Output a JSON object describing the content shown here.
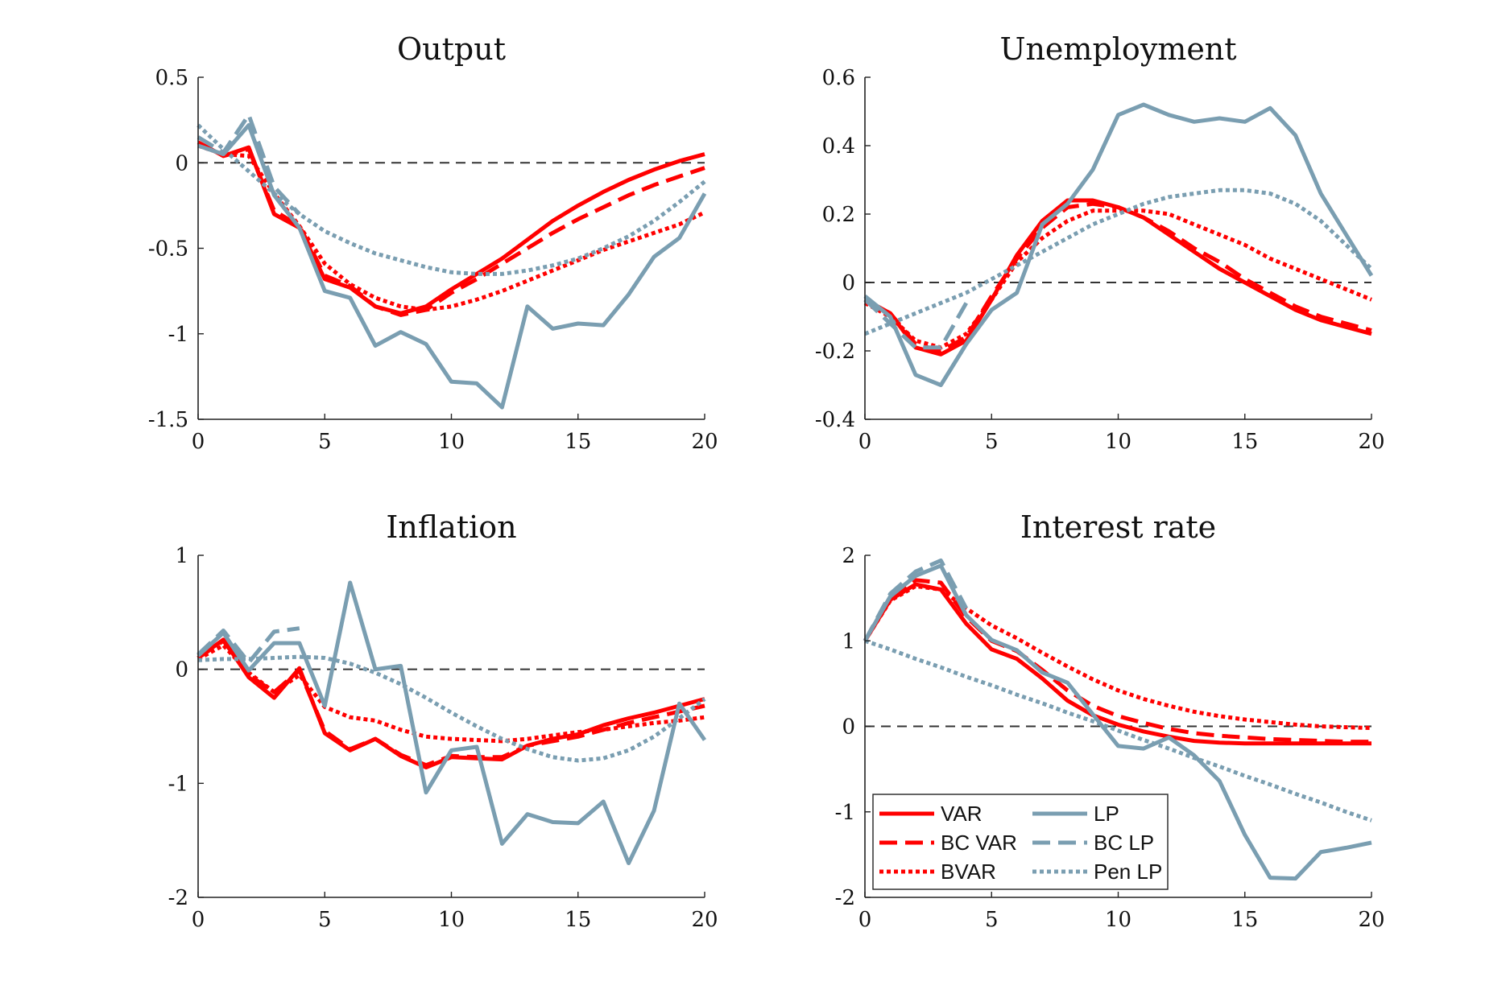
{
  "colors": {
    "var": "#ff0000",
    "lp": "#7a9eb1",
    "zero_line": "#333333",
    "axis": "#222222"
  },
  "legend": {
    "placement": "inside-lower-left of Interest rate panel",
    "entries": [
      {
        "label": "VAR",
        "color": "#ff0000",
        "style": "solid"
      },
      {
        "label": "LP",
        "color": "#7a9eb1",
        "style": "solid"
      },
      {
        "label": "BC VAR",
        "color": "#ff0000",
        "style": "dashed"
      },
      {
        "label": "BC LP",
        "color": "#7a9eb1",
        "style": "dashed"
      },
      {
        "label": "BVAR",
        "color": "#ff0000",
        "style": "dotted"
      },
      {
        "label": "Pen LP",
        "color": "#7a9eb1",
        "style": "dotted"
      }
    ]
  },
  "chart_data": [
    {
      "type": "line",
      "title": "Output",
      "xlim": [
        0,
        20
      ],
      "ylim": [
        -1.5,
        0.5
      ],
      "xticks": [
        0,
        5,
        10,
        15,
        20
      ],
      "xtick_labels": [
        "0",
        "5",
        "10",
        "15",
        "20"
      ],
      "yticks": [
        -1.5,
        -1,
        -0.5,
        0,
        0.5
      ],
      "ytick_labels": [
        "-1.5",
        "-1",
        "-0.5",
        "0",
        "0.5"
      ],
      "zero_line": true,
      "x": [
        0,
        1,
        2,
        3,
        4,
        5,
        6,
        7,
        8,
        9,
        10,
        11,
        12,
        13,
        14,
        15,
        16,
        17,
        18,
        19,
        20
      ],
      "series": [
        {
          "name": "VAR",
          "color": "#ff0000",
          "style": "solid",
          "values": [
            0.12,
            0.04,
            0.09,
            -0.3,
            -0.38,
            -0.68,
            -0.73,
            -0.84,
            -0.88,
            -0.84,
            -0.74,
            -0.65,
            -0.56,
            -0.45,
            -0.34,
            -0.25,
            -0.17,
            -0.1,
            -0.04,
            0.01,
            0.05
          ]
        },
        {
          "name": "BC VAR",
          "color": "#ff0000",
          "style": "dashed",
          "values": [
            0.12,
            0.04,
            0.08,
            -0.28,
            -0.37,
            -0.66,
            -0.72,
            -0.84,
            -0.89,
            -0.86,
            -0.76,
            -0.68,
            -0.59,
            -0.5,
            -0.41,
            -0.33,
            -0.26,
            -0.19,
            -0.13,
            -0.08,
            -0.03
          ]
        },
        {
          "name": "BVAR",
          "color": "#ff0000",
          "style": "dotted",
          "values": [
            0.1,
            0.05,
            0.04,
            -0.18,
            -0.37,
            -0.59,
            -0.71,
            -0.79,
            -0.84,
            -0.86,
            -0.84,
            -0.8,
            -0.75,
            -0.69,
            -0.63,
            -0.57,
            -0.51,
            -0.46,
            -0.41,
            -0.36,
            -0.29
          ]
        },
        {
          "name": "LP",
          "color": "#7a9eb1",
          "style": "solid",
          "values": [
            0.1,
            0.05,
            0.22,
            -0.19,
            -0.38,
            -0.75,
            -0.79,
            -1.07,
            -0.99,
            -1.06,
            -1.28,
            -1.29,
            -1.43,
            -0.84,
            -0.97,
            -0.94,
            -0.95,
            -0.77,
            -0.55,
            -0.44,
            -0.18
          ]
        },
        {
          "name": "BC LP",
          "color": "#7a9eb1",
          "style": "dashed",
          "values": [
            0.15,
            0.06,
            0.28,
            -0.14,
            -0.3,
            null,
            null,
            null,
            null,
            null,
            null,
            null,
            null,
            null,
            null,
            null,
            null,
            null,
            null,
            null,
            null
          ]
        },
        {
          "name": "Pen LP",
          "color": "#7a9eb1",
          "style": "dotted",
          "values": [
            0.22,
            0.08,
            -0.05,
            -0.18,
            -0.3,
            -0.4,
            -0.47,
            -0.53,
            -0.57,
            -0.61,
            -0.64,
            -0.65,
            -0.65,
            -0.63,
            -0.6,
            -0.56,
            -0.5,
            -0.43,
            -0.34,
            -0.23,
            -0.11
          ]
        }
      ]
    },
    {
      "type": "line",
      "title": "Unemployment",
      "xlim": [
        0,
        20
      ],
      "ylim": [
        -0.4,
        0.6
      ],
      "xticks": [
        0,
        5,
        10,
        15,
        20
      ],
      "xtick_labels": [
        "0",
        "5",
        "10",
        "15",
        "20"
      ],
      "yticks": [
        -0.4,
        -0.2,
        0,
        0.2,
        0.4,
        0.6
      ],
      "ytick_labels": [
        "-0.4",
        "-0.2",
        "0",
        "0.2",
        "0.4",
        "0.6"
      ],
      "zero_line": true,
      "x": [
        0,
        1,
        2,
        3,
        4,
        5,
        6,
        7,
        8,
        9,
        10,
        11,
        12,
        13,
        14,
        15,
        16,
        17,
        18,
        19,
        20
      ],
      "series": [
        {
          "name": "VAR",
          "color": "#ff0000",
          "style": "solid",
          "values": [
            -0.05,
            -0.09,
            -0.19,
            -0.21,
            -0.17,
            -0.05,
            0.08,
            0.18,
            0.24,
            0.24,
            0.22,
            0.19,
            0.14,
            0.09,
            0.04,
            0.0,
            -0.04,
            -0.08,
            -0.11,
            -0.13,
            -0.15
          ]
        },
        {
          "name": "BC VAR",
          "color": "#ff0000",
          "style": "dashed",
          "values": [
            -0.05,
            -0.09,
            -0.18,
            -0.2,
            -0.16,
            -0.04,
            0.07,
            0.16,
            0.22,
            0.23,
            0.22,
            0.19,
            0.15,
            0.1,
            0.06,
            0.01,
            -0.03,
            -0.07,
            -0.1,
            -0.12,
            -0.14
          ]
        },
        {
          "name": "BVAR",
          "color": "#ff0000",
          "style": "dotted",
          "values": [
            -0.06,
            -0.1,
            -0.17,
            -0.19,
            -0.15,
            -0.05,
            0.06,
            0.13,
            0.18,
            0.21,
            0.21,
            0.21,
            0.2,
            0.17,
            0.14,
            0.11,
            0.07,
            0.04,
            0.01,
            -0.02,
            -0.05
          ]
        },
        {
          "name": "LP",
          "color": "#7a9eb1",
          "style": "solid",
          "values": [
            -0.04,
            -0.1,
            -0.27,
            -0.3,
            -0.18,
            -0.08,
            -0.03,
            0.17,
            0.23,
            0.33,
            0.49,
            0.52,
            0.49,
            0.47,
            0.48,
            0.47,
            0.51,
            0.43,
            0.26,
            0.14,
            0.02
          ]
        },
        {
          "name": "BC LP",
          "color": "#7a9eb1",
          "style": "dashed",
          "values": [
            -0.05,
            -0.12,
            -0.19,
            -0.19,
            -0.06,
            null,
            null,
            null,
            null,
            null,
            null,
            null,
            null,
            null,
            null,
            null,
            null,
            null,
            null,
            null,
            null
          ]
        },
        {
          "name": "Pen LP",
          "color": "#7a9eb1",
          "style": "dotted",
          "values": [
            -0.15,
            -0.12,
            -0.09,
            -0.06,
            -0.03,
            0.01,
            0.05,
            0.09,
            0.13,
            0.17,
            0.2,
            0.23,
            0.25,
            0.26,
            0.27,
            0.27,
            0.26,
            0.23,
            0.18,
            0.11,
            0.04
          ]
        }
      ]
    },
    {
      "type": "line",
      "title": "Inflation",
      "xlim": [
        0,
        20
      ],
      "ylim": [
        -2,
        1
      ],
      "xticks": [
        0,
        5,
        10,
        15,
        20
      ],
      "xtick_labels": [
        "0",
        "5",
        "10",
        "15",
        "20"
      ],
      "yticks": [
        -2,
        -1,
        0,
        1
      ],
      "ytick_labels": [
        "-2",
        "-1",
        "0",
        "1"
      ],
      "zero_line": true,
      "x": [
        0,
        1,
        2,
        3,
        4,
        5,
        6,
        7,
        8,
        9,
        10,
        11,
        12,
        13,
        14,
        15,
        16,
        17,
        18,
        19,
        20
      ],
      "series": [
        {
          "name": "VAR",
          "color": "#ff0000",
          "style": "solid",
          "values": [
            0.1,
            0.26,
            -0.07,
            -0.25,
            0.01,
            -0.56,
            -0.71,
            -0.61,
            -0.76,
            -0.86,
            -0.77,
            -0.78,
            -0.79,
            -0.67,
            -0.61,
            -0.57,
            -0.49,
            -0.43,
            -0.38,
            -0.32,
            -0.26
          ]
        },
        {
          "name": "BC VAR",
          "color": "#ff0000",
          "style": "dashed",
          "values": [
            0.1,
            0.25,
            -0.05,
            -0.2,
            -0.01,
            -0.54,
            -0.7,
            -0.61,
            -0.75,
            -0.84,
            -0.76,
            -0.77,
            -0.77,
            -0.67,
            -0.63,
            -0.59,
            -0.53,
            -0.47,
            -0.42,
            -0.37,
            -0.32
          ]
        },
        {
          "name": "BVAR",
          "color": "#ff0000",
          "style": "dotted",
          "values": [
            0.09,
            0.21,
            -0.03,
            -0.2,
            -0.05,
            -0.33,
            -0.42,
            -0.45,
            -0.53,
            -0.59,
            -0.61,
            -0.62,
            -0.63,
            -0.61,
            -0.58,
            -0.55,
            -0.53,
            -0.5,
            -0.47,
            -0.45,
            -0.42
          ]
        },
        {
          "name": "LP",
          "color": "#7a9eb1",
          "style": "solid",
          "values": [
            0.12,
            0.32,
            -0.01,
            0.23,
            0.23,
            -0.32,
            0.76,
            0.0,
            0.03,
            -1.08,
            -0.71,
            -0.68,
            -1.53,
            -1.27,
            -1.34,
            -1.35,
            -1.16,
            -1.7,
            -1.24,
            -0.3,
            -0.62
          ]
        },
        {
          "name": "BC LP",
          "color": "#7a9eb1",
          "style": "dashed",
          "values": [
            0.13,
            0.34,
            0.06,
            0.33,
            0.36,
            null,
            null,
            null,
            null,
            null,
            null,
            null,
            null,
            null,
            null,
            null,
            null,
            null,
            null,
            null,
            null
          ]
        },
        {
          "name": "Pen LP",
          "color": "#7a9eb1",
          "style": "dotted",
          "values": [
            0.08,
            0.09,
            0.09,
            0.1,
            0.11,
            0.1,
            0.05,
            -0.03,
            -0.13,
            -0.25,
            -0.38,
            -0.5,
            -0.61,
            -0.7,
            -0.77,
            -0.8,
            -0.78,
            -0.71,
            -0.59,
            -0.43,
            -0.26
          ]
        }
      ]
    },
    {
      "type": "line",
      "title": "Interest rate",
      "xlim": [
        0,
        20
      ],
      "ylim": [
        -2,
        2
      ],
      "xticks": [
        0,
        5,
        10,
        15,
        20
      ],
      "xtick_labels": [
        "0",
        "5",
        "10",
        "15",
        "20"
      ],
      "yticks": [
        -2,
        -1,
        0,
        1,
        2
      ],
      "ytick_labels": [
        "-2",
        "-1",
        "0",
        "1",
        "2"
      ],
      "zero_line": true,
      "x": [
        0,
        1,
        2,
        3,
        4,
        5,
        6,
        7,
        8,
        9,
        10,
        11,
        12,
        13,
        14,
        15,
        16,
        17,
        18,
        19,
        20
      ],
      "series": [
        {
          "name": "VAR",
          "color": "#ff0000",
          "style": "solid",
          "values": [
            1.0,
            1.48,
            1.66,
            1.6,
            1.2,
            0.9,
            0.79,
            0.56,
            0.3,
            0.13,
            0.02,
            -0.06,
            -0.12,
            -0.17,
            -0.19,
            -0.2,
            -0.2,
            -0.2,
            -0.2,
            -0.2,
            -0.2
          ]
        },
        {
          "name": "BC VAR",
          "color": "#ff0000",
          "style": "dashed",
          "values": [
            1.0,
            1.5,
            1.71,
            1.68,
            1.28,
            1.0,
            0.88,
            0.66,
            0.42,
            0.24,
            0.12,
            0.04,
            -0.03,
            -0.08,
            -0.11,
            -0.13,
            -0.15,
            -0.16,
            -0.17,
            -0.18,
            -0.18
          ]
        },
        {
          "name": "BVAR",
          "color": "#ff0000",
          "style": "dotted",
          "values": [
            1.0,
            1.47,
            1.64,
            1.6,
            1.38,
            1.18,
            1.03,
            0.86,
            0.7,
            0.55,
            0.42,
            0.32,
            0.24,
            0.17,
            0.12,
            0.08,
            0.05,
            0.02,
            0.0,
            -0.01,
            -0.02
          ]
        },
        {
          "name": "LP",
          "color": "#7a9eb1",
          "style": "solid",
          "values": [
            1.0,
            1.52,
            1.76,
            1.88,
            1.3,
            1.01,
            0.89,
            0.63,
            0.51,
            0.14,
            -0.23,
            -0.26,
            -0.13,
            -0.34,
            -0.64,
            -1.27,
            -1.77,
            -1.78,
            -1.47,
            -1.42,
            -1.36
          ]
        },
        {
          "name": "BC LP",
          "color": "#7a9eb1",
          "style": "dashed",
          "values": [
            1.0,
            1.55,
            1.81,
            1.94,
            1.38,
            null,
            null,
            null,
            null,
            null,
            null,
            null,
            null,
            null,
            null,
            null,
            null,
            null,
            null,
            null,
            null
          ]
        },
        {
          "name": "Pen LP",
          "color": "#7a9eb1",
          "style": "dotted",
          "values": [
            1.0,
            0.9,
            0.79,
            0.69,
            0.58,
            0.48,
            0.37,
            0.27,
            0.16,
            0.06,
            -0.05,
            -0.16,
            -0.26,
            -0.37,
            -0.47,
            -0.58,
            -0.68,
            -0.79,
            -0.89,
            -1.0,
            -1.1
          ]
        }
      ]
    }
  ]
}
